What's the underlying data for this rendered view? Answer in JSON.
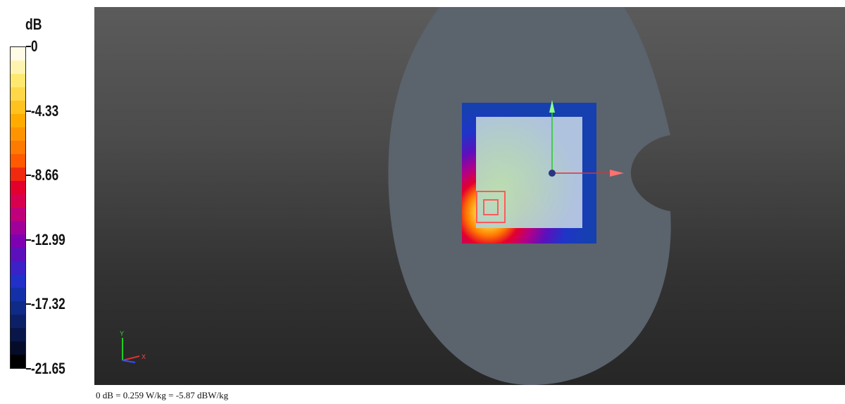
{
  "legend": {
    "unit": "dB",
    "ticks": [
      {
        "label": "0"
      },
      {
        "label": "-4.33"
      },
      {
        "label": "-8.66"
      },
      {
        "label": "-12.99"
      },
      {
        "label": "-17.32"
      },
      {
        "label": "-21.65"
      }
    ],
    "colors": [
      "#fffbe6",
      "#fff3b0",
      "#ffe870",
      "#ffd84a",
      "#ffc21e",
      "#ffab00",
      "#ff9400",
      "#ff7a00",
      "#ff5a00",
      "#f02a0e",
      "#e4002d",
      "#d8004e",
      "#c0007a",
      "#a0009a",
      "#7e00b0",
      "#5c10bc",
      "#3c20c8",
      "#2030c8",
      "#1430a8",
      "#102a88",
      "#0c2068",
      "#08164a",
      "#040c2a",
      "#000000"
    ]
  },
  "viewport": {
    "axes_triad": {
      "y_label": "Y",
      "x_label": "X"
    }
  },
  "footnote": "0 dB = 0.259 W/kg = -5.87 dBW/kg"
}
